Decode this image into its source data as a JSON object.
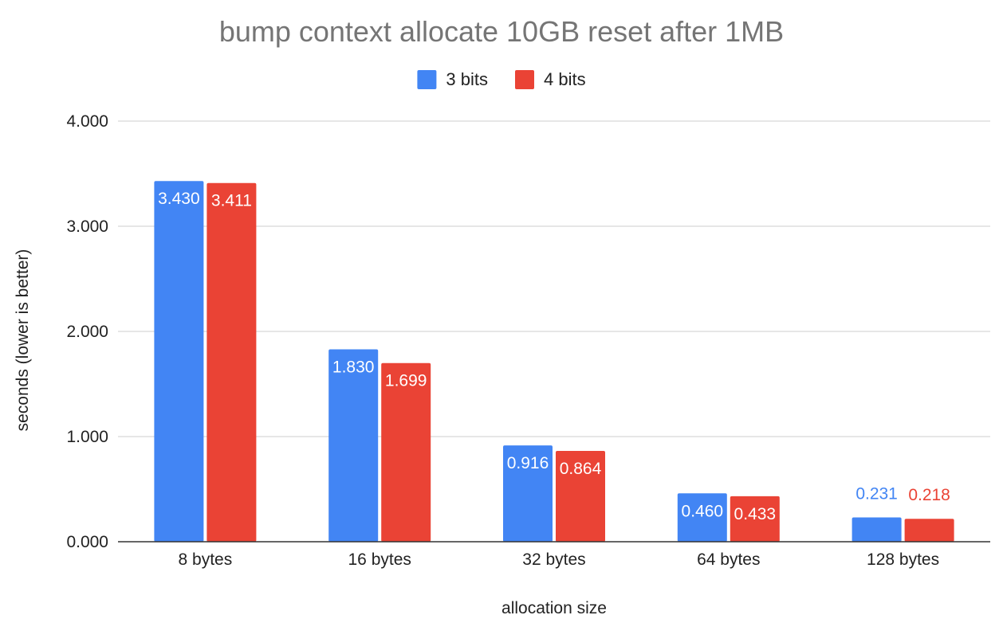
{
  "chart_data": {
    "type": "bar",
    "title": "bump context allocate 10GB reset after 1MB",
    "xlabel": "allocation size",
    "ylabel": "seconds (lower is better)",
    "categories": [
      "8 bytes",
      "16 bytes",
      "32 bytes",
      "64 bytes",
      "128 bytes"
    ],
    "series": [
      {
        "name": "3 bits",
        "color": "#4285f4",
        "values": [
          3.43,
          1.83,
          0.916,
          0.46,
          0.231
        ],
        "labels": [
          "3.430",
          "1.830",
          "0.916",
          "0.460",
          "0.231"
        ]
      },
      {
        "name": "4 bits",
        "color": "#ea4335",
        "values": [
          3.411,
          1.699,
          0.864,
          0.433,
          0.218
        ],
        "labels": [
          "3.411",
          "1.699",
          "0.864",
          "0.433",
          "0.218"
        ]
      }
    ],
    "ylim": [
      0,
      4
    ],
    "yticks": [
      "0.000",
      "1.000",
      "2.000",
      "3.000",
      "4.000"
    ],
    "grid": true,
    "legend_position": "top"
  }
}
